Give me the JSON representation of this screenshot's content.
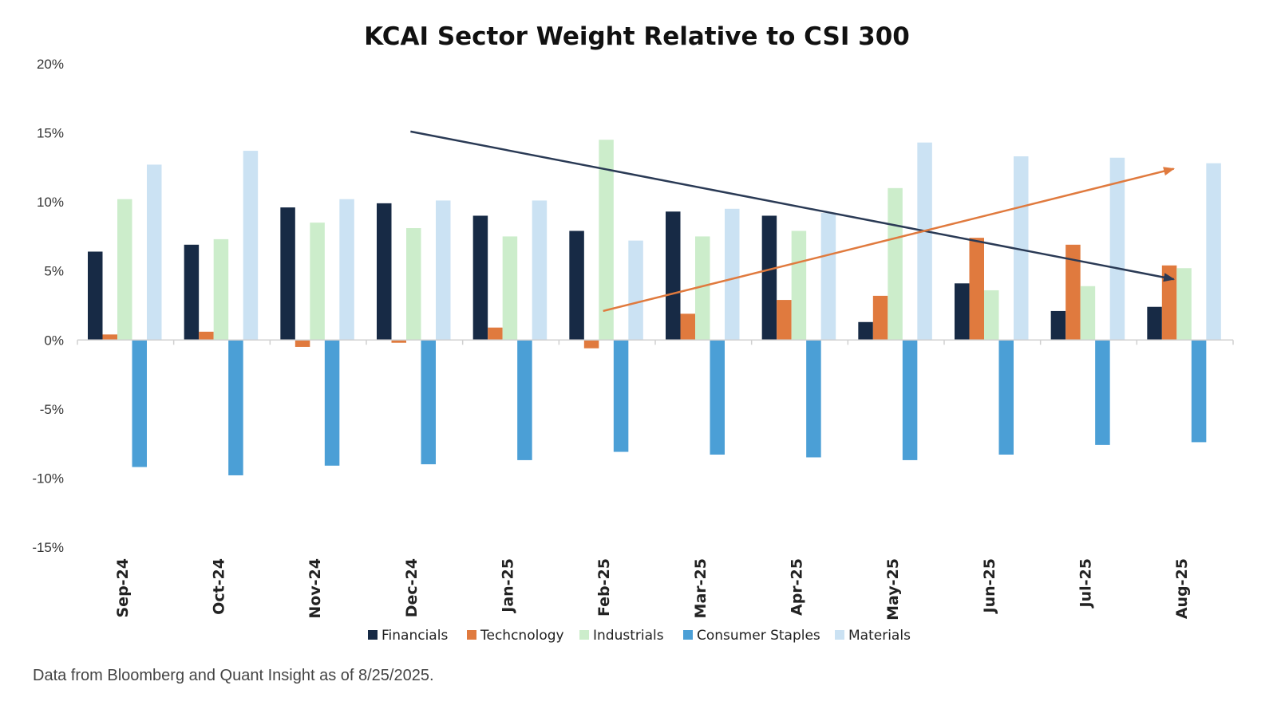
{
  "chart_data": {
    "type": "bar",
    "title": "KCAI Sector Weight Relative to CSI 300",
    "source": "Data from Bloomberg and Quant Insight as of 8/25/2025.",
    "xlabel": "",
    "ylabel": "",
    "ylim": [
      -15,
      20
    ],
    "yticks": [
      20,
      15,
      10,
      5,
      0,
      -5,
      -10,
      -15
    ],
    "ytick_labels": [
      "20%",
      "15%",
      "10%",
      "5%",
      "0%",
      "-5%",
      "-10%",
      "-15%"
    ],
    "grid": false,
    "legend_position": "bottom",
    "categories": [
      "Sep-24",
      "Oct-24",
      "Nov-24",
      "Dec-24",
      "Jan-25",
      "Feb-25",
      "Mar-25",
      "Apr-25",
      "May-25",
      "Jun-25",
      "Jul-25",
      "Aug-25"
    ],
    "series": [
      {
        "name": "Financials",
        "color": "#172a45",
        "values": [
          6.4,
          6.9,
          9.6,
          9.9,
          9.0,
          7.9,
          9.3,
          9.0,
          1.3,
          4.1,
          2.1,
          2.4
        ]
      },
      {
        "name": "Techcnology",
        "color": "#e07a3e",
        "values": [
          0.4,
          0.6,
          -0.5,
          -0.2,
          0.9,
          -0.6,
          1.9,
          2.9,
          3.2,
          7.4,
          6.9,
          5.4
        ]
      },
      {
        "name": "Industrials",
        "color": "#ccedcb",
        "values": [
          10.2,
          7.3,
          8.5,
          8.1,
          7.5,
          14.5,
          7.5,
          7.9,
          11.0,
          3.6,
          3.9,
          5.2
        ]
      },
      {
        "name": "Consumer Staples",
        "color": "#4b9fd6",
        "values": [
          -9.2,
          -9.8,
          -9.1,
          -9.0,
          -8.7,
          -8.1,
          -8.3,
          -8.5,
          -8.7,
          -8.3,
          -7.6,
          -7.4
        ]
      },
      {
        "name": "Materials",
        "color": "#cbe2f3",
        "values": [
          12.7,
          13.7,
          10.2,
          10.1,
          10.1,
          7.2,
          9.5,
          9.2,
          14.3,
          13.3,
          13.2,
          12.8
        ]
      }
    ],
    "annotations": [
      {
        "type": "arrow",
        "color": "#2a3a55",
        "from": {
          "category": "Dec-24",
          "y": 15.1
        },
        "to": {
          "category": "Aug-25",
          "y": 4.4
        }
      },
      {
        "type": "arrow",
        "color": "#e07a3e",
        "from": {
          "category": "Feb-25",
          "y": 2.1
        },
        "to": {
          "category": "Aug-25",
          "y": 12.4
        }
      }
    ]
  }
}
